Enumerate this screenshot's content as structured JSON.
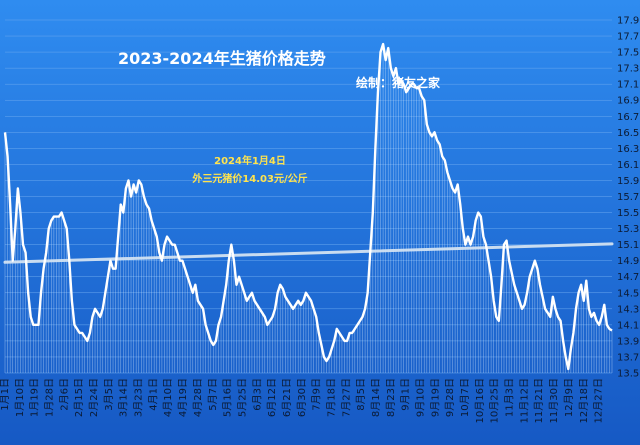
{
  "chart_data": {
    "type": "line",
    "title": "2023-2024年生猪价格走势",
    "subtitle": "绘制：猪友之家",
    "annotation": [
      "2024年1月4日",
      "外三元猪价14.03元/公斤"
    ],
    "ylim": [
      13.5,
      17.9
    ],
    "y_ticks": [
      "17.9",
      "17.7",
      "17.5",
      "17.3",
      "17.1",
      "16.9",
      "16.7",
      "16.5",
      "16.3",
      "16.1",
      "15.9",
      "15.7",
      "15.5",
      "15.3",
      "15.1",
      "14.9",
      "14.7",
      "14.5",
      "14.3",
      "14.1",
      "13.9",
      "13.7",
      "13.5"
    ],
    "x_ticks": [
      "1月1日",
      "1月10日",
      "1月19日",
      "1月28日",
      "2月6日",
      "2月15日",
      "2月24日",
      "3月5日",
      "3月14日",
      "3月23日",
      "4月1日",
      "4月10日",
      "4月19日",
      "4月28日",
      "5月7日",
      "5月16日",
      "5月25日",
      "6月3日",
      "6月12日",
      "6月21日",
      "6月30日",
      "7月9日",
      "7月18日",
      "7月27日",
      "8月5日",
      "8月14日",
      "8月23日",
      "9月1日",
      "9月10日",
      "9月19日",
      "9月28日",
      "10月7日",
      "10月16日",
      "10月25日",
      "11月3日",
      "11月12日",
      "11月21日",
      "11月30日",
      "12月9日",
      "12月18日",
      "12月27日"
    ],
    "grid": true,
    "colors": {
      "background": "#1d6fd6",
      "line": "#ffffff",
      "trend": "#c9dcf0",
      "annotation": "#ffe34d",
      "tick": "#0b1a33"
    },
    "trend": {
      "start": 14.88,
      "end": 15.11
    },
    "series": [
      {
        "values": [
          16.5,
          16.2,
          15.6,
          14.9,
          15.3,
          15.8,
          15.5,
          15.1,
          15.0,
          14.5,
          14.2,
          14.1,
          14.1,
          14.1,
          14.5,
          14.8,
          15.0,
          15.3,
          15.4,
          15.45,
          15.45,
          15.45,
          15.5,
          15.4,
          15.3,
          14.9,
          14.4,
          14.1,
          14.05,
          14.0,
          14.0,
          13.95,
          13.9,
          14.0,
          14.2,
          14.3,
          14.25,
          14.2,
          14.3,
          14.5,
          14.7,
          14.9,
          14.8,
          14.8,
          15.2,
          15.6,
          15.5,
          15.8,
          15.9,
          15.7,
          15.85,
          15.75,
          15.9,
          15.85,
          15.7,
          15.6,
          15.55,
          15.4,
          15.3,
          15.2,
          15.0,
          14.9,
          15.1,
          15.2,
          15.15,
          15.1,
          15.1,
          15.0,
          14.9,
          14.9,
          14.8,
          14.7,
          14.6,
          14.5,
          14.6,
          14.4,
          14.35,
          14.3,
          14.1,
          14.0,
          13.9,
          13.85,
          13.9,
          14.1,
          14.2,
          14.4,
          14.6,
          14.9,
          15.1,
          14.9,
          14.6,
          14.7,
          14.6,
          14.5,
          14.4,
          14.45,
          14.5,
          14.4,
          14.35,
          14.3,
          14.25,
          14.2,
          14.1,
          14.15,
          14.2,
          14.3,
          14.5,
          14.6,
          14.55,
          14.45,
          14.4,
          14.35,
          14.3,
          14.35,
          14.4,
          14.35,
          14.4,
          14.5,
          14.45,
          14.4,
          14.3,
          14.2,
          14.0,
          13.85,
          13.7,
          13.65,
          13.7,
          13.8,
          13.9,
          14.05,
          14.0,
          13.95,
          13.9,
          13.9,
          14.0,
          14.0,
          14.05,
          14.1,
          14.15,
          14.2,
          14.3,
          14.5,
          15.0,
          15.5,
          16.3,
          17.0,
          17.5,
          17.6,
          17.4,
          17.55,
          17.3,
          17.2,
          17.3,
          17.1,
          17.15,
          17.1,
          17.0,
          17.05,
          17.1,
          17.1,
          17.05,
          17.05,
          16.95,
          16.9,
          16.6,
          16.5,
          16.45,
          16.5,
          16.4,
          16.35,
          16.2,
          16.15,
          16.0,
          15.9,
          15.8,
          15.75,
          15.85,
          15.6,
          15.3,
          15.1,
          15.2,
          15.1,
          15.2,
          15.4,
          15.5,
          15.45,
          15.2,
          15.1,
          14.9,
          14.7,
          14.4,
          14.2,
          14.15,
          14.6,
          15.1,
          15.15,
          14.9,
          14.75,
          14.6,
          14.5,
          14.4,
          14.3,
          14.35,
          14.5,
          14.7,
          14.8,
          14.9,
          14.8,
          14.6,
          14.45,
          14.3,
          14.25,
          14.2,
          14.45,
          14.3,
          14.2,
          14.15,
          13.9,
          13.7,
          13.55,
          13.8,
          14.0,
          14.3,
          14.5,
          14.6,
          14.4,
          14.65,
          14.3,
          14.2,
          14.25,
          14.15,
          14.1,
          14.2,
          14.35,
          14.1,
          14.05,
          14.03
        ]
      }
    ]
  }
}
